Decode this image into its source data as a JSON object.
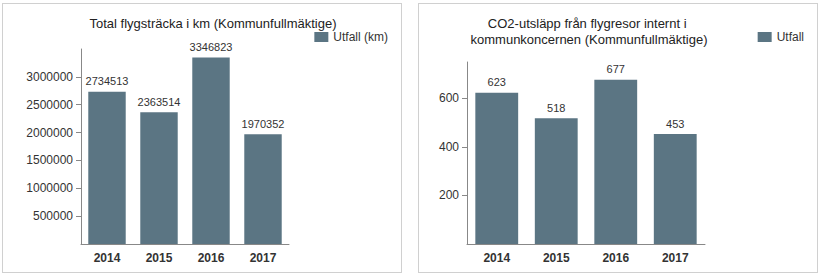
{
  "chart_data": [
    {
      "type": "bar",
      "title": "Total flygsträcka i km (Kommunfullmäktige)",
      "categories": [
        "2014",
        "2015",
        "2016",
        "2017"
      ],
      "series": [
        {
          "name": "Utfall (km)",
          "color": "#5b7583",
          "values": [
            2734513,
            2363514,
            3346823,
            1970352
          ]
        }
      ],
      "ylim": [
        0,
        3500000
      ],
      "yticks": [
        500000,
        1000000,
        1500000,
        2000000,
        2500000,
        3000000
      ],
      "grid": false,
      "legend": "top-right",
      "data_labels": true
    },
    {
      "type": "bar",
      "title": "CO2-utsläpp från flygresor internt i kommunkoncernen (Kommunfullmäktige)",
      "categories": [
        "2014",
        "2015",
        "2016",
        "2017"
      ],
      "series": [
        {
          "name": "Utfall",
          "color": "#5b7583",
          "values": [
            623,
            518,
            677,
            453
          ]
        }
      ],
      "ylim": [
        0,
        750
      ],
      "yticks": [
        200,
        400,
        600
      ],
      "grid": false,
      "legend": "top-right",
      "data_labels": true
    }
  ]
}
